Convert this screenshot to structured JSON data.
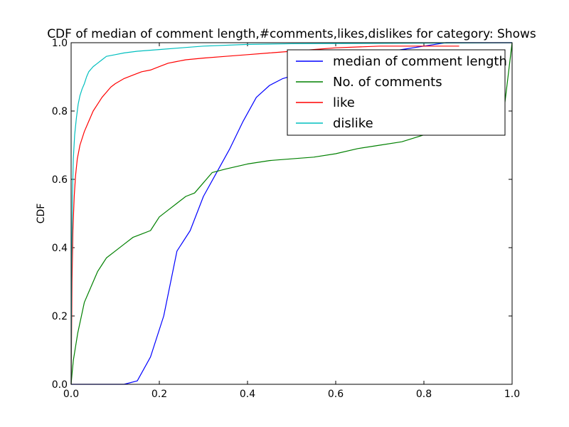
{
  "chart_data": {
    "type": "line",
    "title": "CDF of median of comment length,#comments,likes,dislikes for category: Shows",
    "xlabel": "",
    "ylabel": "CDF",
    "xlim": [
      0.0,
      1.0
    ],
    "ylim": [
      0.0,
      1.0
    ],
    "x_ticks": [
      "0.0",
      "0.2",
      "0.4",
      "0.6",
      "0.8",
      "1.0"
    ],
    "y_ticks": [
      "0.0",
      "0.2",
      "0.4",
      "0.6",
      "0.8",
      "1.0"
    ],
    "grid": false,
    "legend_position": "upper right",
    "series": [
      {
        "name": "median of comment length",
        "color": "#0000ff",
        "points": [
          [
            0.0,
            0.0
          ],
          [
            0.12,
            0.0
          ],
          [
            0.15,
            0.01
          ],
          [
            0.18,
            0.08
          ],
          [
            0.21,
            0.2
          ],
          [
            0.24,
            0.39
          ],
          [
            0.27,
            0.45
          ],
          [
            0.3,
            0.55
          ],
          [
            0.33,
            0.62
          ],
          [
            0.36,
            0.69
          ],
          [
            0.39,
            0.77
          ],
          [
            0.42,
            0.84
          ],
          [
            0.45,
            0.875
          ],
          [
            0.48,
            0.895
          ],
          [
            0.52,
            0.91
          ],
          [
            0.55,
            0.925
          ],
          [
            0.6,
            0.945
          ],
          [
            0.65,
            0.96
          ],
          [
            0.7,
            0.97
          ],
          [
            0.75,
            0.98
          ],
          [
            0.8,
            0.99
          ],
          [
            0.85,
            1.0
          ],
          [
            1.0,
            1.0
          ]
        ]
      },
      {
        "name": "No. of comments",
        "color": "#008000",
        "points": [
          [
            0.0,
            0.0
          ],
          [
            0.002,
            0.03
          ],
          [
            0.005,
            0.07
          ],
          [
            0.01,
            0.11
          ],
          [
            0.015,
            0.15
          ],
          [
            0.02,
            0.18
          ],
          [
            0.025,
            0.21
          ],
          [
            0.03,
            0.24
          ],
          [
            0.04,
            0.27
          ],
          [
            0.05,
            0.3
          ],
          [
            0.06,
            0.33
          ],
          [
            0.07,
            0.35
          ],
          [
            0.08,
            0.37
          ],
          [
            0.1,
            0.39
          ],
          [
            0.12,
            0.41
          ],
          [
            0.14,
            0.43
          ],
          [
            0.16,
            0.44
          ],
          [
            0.18,
            0.45
          ],
          [
            0.2,
            0.49
          ],
          [
            0.22,
            0.51
          ],
          [
            0.24,
            0.53
          ],
          [
            0.26,
            0.55
          ],
          [
            0.28,
            0.56
          ],
          [
            0.3,
            0.59
          ],
          [
            0.32,
            0.62
          ],
          [
            0.35,
            0.63
          ],
          [
            0.4,
            0.645
          ],
          [
            0.45,
            0.655
          ],
          [
            0.5,
            0.66
          ],
          [
            0.55,
            0.665
          ],
          [
            0.6,
            0.675
          ],
          [
            0.65,
            0.69
          ],
          [
            0.7,
            0.7
          ],
          [
            0.75,
            0.71
          ],
          [
            0.8,
            0.73
          ],
          [
            0.85,
            0.75
          ],
          [
            0.9,
            0.77
          ],
          [
            0.95,
            0.78
          ],
          [
            0.98,
            0.785
          ],
          [
            1.0,
            1.0
          ]
        ]
      },
      {
        "name": "like",
        "color": "#ff0000",
        "points": [
          [
            0.0,
            0.0
          ],
          [
            0.002,
            0.3
          ],
          [
            0.004,
            0.45
          ],
          [
            0.007,
            0.55
          ],
          [
            0.01,
            0.61
          ],
          [
            0.014,
            0.66
          ],
          [
            0.02,
            0.7
          ],
          [
            0.03,
            0.74
          ],
          [
            0.04,
            0.77
          ],
          [
            0.05,
            0.8
          ],
          [
            0.06,
            0.82
          ],
          [
            0.07,
            0.84
          ],
          [
            0.08,
            0.855
          ],
          [
            0.09,
            0.87
          ],
          [
            0.1,
            0.88
          ],
          [
            0.12,
            0.895
          ],
          [
            0.14,
            0.905
          ],
          [
            0.16,
            0.915
          ],
          [
            0.18,
            0.92
          ],
          [
            0.2,
            0.93
          ],
          [
            0.22,
            0.94
          ],
          [
            0.24,
            0.945
          ],
          [
            0.26,
            0.95
          ],
          [
            0.3,
            0.955
          ],
          [
            0.35,
            0.96
          ],
          [
            0.4,
            0.965
          ],
          [
            0.45,
            0.97
          ],
          [
            0.5,
            0.975
          ],
          [
            0.55,
            0.98
          ],
          [
            0.6,
            0.985
          ],
          [
            0.7,
            0.99
          ],
          [
            0.88,
            0.99
          ]
        ]
      },
      {
        "name": "dislike",
        "color": "#00bfbf",
        "points": [
          [
            0.0,
            0.0
          ],
          [
            0.001,
            0.35
          ],
          [
            0.003,
            0.55
          ],
          [
            0.005,
            0.66
          ],
          [
            0.008,
            0.73
          ],
          [
            0.012,
            0.78
          ],
          [
            0.016,
            0.82
          ],
          [
            0.02,
            0.845
          ],
          [
            0.025,
            0.865
          ],
          [
            0.03,
            0.88
          ],
          [
            0.035,
            0.9
          ],
          [
            0.04,
            0.915
          ],
          [
            0.05,
            0.93
          ],
          [
            0.06,
            0.94
          ],
          [
            0.07,
            0.95
          ],
          [
            0.08,
            0.96
          ],
          [
            0.1,
            0.965
          ],
          [
            0.12,
            0.97
          ],
          [
            0.15,
            0.975
          ],
          [
            0.2,
            0.98
          ],
          [
            0.25,
            0.985
          ],
          [
            0.3,
            0.99
          ],
          [
            0.4,
            0.995
          ],
          [
            0.5,
            0.997
          ],
          [
            1.0,
            1.0
          ]
        ]
      }
    ]
  }
}
